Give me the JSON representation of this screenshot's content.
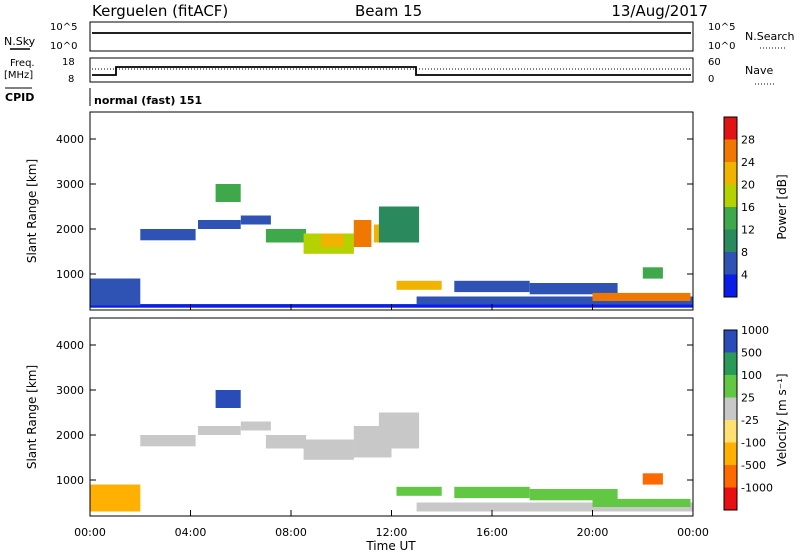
{
  "header": {
    "station": "Kerguelen (fitACF)",
    "beam": "Beam 15",
    "date": "13/Aug/2017"
  },
  "top_panels": {
    "nsky": {
      "left_label": "N.Sky",
      "right_label": "N.Search",
      "tick_top": "10^5",
      "tick_bottom": "10^0"
    },
    "freq": {
      "left_label_1": "Freq.",
      "left_label_2": "[MHz]",
      "left_tick_top": "18",
      "left_tick_bottom": "8",
      "right_label": "Nave",
      "right_tick_top": "60",
      "right_tick_bottom": "0"
    },
    "cpid": {
      "label": "CPID",
      "value": "normal (fast) 151"
    }
  },
  "colors": {
    "power_scale": [
      "#0a1ee6",
      "#2e53b4",
      "#2a8a5e",
      "#3ea84a",
      "#b4d200",
      "#f0b400",
      "#f07800",
      "#e01414"
    ],
    "velocity_scale": [
      "#e81010",
      "#ff6a00",
      "#ffb000",
      "#ffe070",
      "#c8c8c8",
      "#62c844",
      "#2a9a58",
      "#2a4cb8"
    ]
  },
  "chart_data": [
    {
      "type": "heatmap",
      "quantity": "power",
      "xlabel": "",
      "ylabel": "Slant Range [km]",
      "y_ticks": [
        "1000",
        "2000",
        "3000",
        "4000"
      ],
      "ylim": [
        200,
        4600
      ],
      "xlim_hours": [
        0,
        24
      ],
      "colorbar": {
        "label": "Power [dB]",
        "ticks": [
          "4",
          "8",
          "12",
          "16",
          "20",
          "24",
          "28"
        ],
        "range": [
          0,
          32
        ]
      },
      "patches": [
        {
          "t0": 0.0,
          "t1": 24.0,
          "r0": 250,
          "r1": 330,
          "level": 0
        },
        {
          "t0": 0.0,
          "t1": 2.0,
          "r0": 300,
          "r1": 900,
          "level": 1
        },
        {
          "t0": 2.0,
          "t1": 4.2,
          "r0": 1750,
          "r1": 2000,
          "level": 1
        },
        {
          "t0": 4.3,
          "t1": 6.0,
          "r0": 2000,
          "r1": 2200,
          "level": 1
        },
        {
          "t0": 5.0,
          "t1": 6.0,
          "r0": 2600,
          "r1": 3000,
          "level": 3
        },
        {
          "t0": 6.0,
          "t1": 7.2,
          "r0": 2100,
          "r1": 2300,
          "level": 1
        },
        {
          "t0": 7.0,
          "t1": 8.6,
          "r0": 1700,
          "r1": 2000,
          "level": 3
        },
        {
          "t0": 8.5,
          "t1": 10.5,
          "r0": 1450,
          "r1": 1900,
          "level": 4
        },
        {
          "t0": 9.2,
          "t1": 10.1,
          "r0": 1600,
          "r1": 1900,
          "level": 5
        },
        {
          "t0": 10.5,
          "t1": 11.2,
          "r0": 1600,
          "r1": 2200,
          "level": 6
        },
        {
          "t0": 11.3,
          "t1": 12.0,
          "r0": 1700,
          "r1": 2100,
          "level": 5
        },
        {
          "t0": 11.5,
          "t1": 13.1,
          "r0": 1700,
          "r1": 2500,
          "level": 2
        },
        {
          "t0": 12.2,
          "t1": 14.0,
          "r0": 650,
          "r1": 850,
          "level": 5
        },
        {
          "t0": 14.5,
          "t1": 17.5,
          "r0": 600,
          "r1": 850,
          "level": 1
        },
        {
          "t0": 17.5,
          "t1": 21.0,
          "r0": 550,
          "r1": 800,
          "level": 1
        },
        {
          "t0": 13.0,
          "t1": 24.0,
          "r0": 330,
          "r1": 500,
          "level": 1
        },
        {
          "t0": 20.0,
          "t1": 23.9,
          "r0": 400,
          "r1": 580,
          "level": 6
        },
        {
          "t0": 22.0,
          "t1": 22.8,
          "r0": 900,
          "r1": 1150,
          "level": 3
        }
      ]
    },
    {
      "type": "heatmap",
      "quantity": "velocity",
      "xlabel": "Time UT",
      "ylabel": "Slant Range [km]",
      "x_ticks": [
        "00:00",
        "04:00",
        "08:00",
        "12:00",
        "16:00",
        "20:00",
        "00:00"
      ],
      "y_ticks": [
        "1000",
        "2000",
        "3000",
        "4000"
      ],
      "ylim": [
        200,
        4600
      ],
      "xlim_hours": [
        0,
        24
      ],
      "colorbar": {
        "label": "Velocity [m s⁻¹]",
        "ticks": [
          "-1000",
          "-500",
          "-100",
          "-25",
          "25",
          "100",
          "500",
          "1000"
        ],
        "n_bins": 8
      },
      "patches": [
        {
          "t0": 0.0,
          "t1": 2.0,
          "r0": 300,
          "r1": 900,
          "level": 2
        },
        {
          "t0": 2.0,
          "t1": 4.2,
          "r0": 1750,
          "r1": 2000,
          "level": 4
        },
        {
          "t0": 4.3,
          "t1": 6.0,
          "r0": 2000,
          "r1": 2200,
          "level": 4
        },
        {
          "t0": 5.0,
          "t1": 6.0,
          "r0": 2600,
          "r1": 3000,
          "level": 7
        },
        {
          "t0": 6.0,
          "t1": 7.2,
          "r0": 2100,
          "r1": 2300,
          "level": 4
        },
        {
          "t0": 7.0,
          "t1": 8.6,
          "r0": 1700,
          "r1": 2000,
          "level": 4
        },
        {
          "t0": 8.5,
          "t1": 10.5,
          "r0": 1450,
          "r1": 1900,
          "level": 4
        },
        {
          "t0": 10.5,
          "t1": 12.0,
          "r0": 1500,
          "r1": 2200,
          "level": 4
        },
        {
          "t0": 11.5,
          "t1": 13.1,
          "r0": 1700,
          "r1": 2500,
          "level": 4
        },
        {
          "t0": 12.2,
          "t1": 14.0,
          "r0": 650,
          "r1": 850,
          "level": 5
        },
        {
          "t0": 14.5,
          "t1": 17.5,
          "r0": 600,
          "r1": 850,
          "level": 5
        },
        {
          "t0": 17.5,
          "t1": 21.0,
          "r0": 550,
          "r1": 800,
          "level": 5
        },
        {
          "t0": 13.0,
          "t1": 24.0,
          "r0": 300,
          "r1": 500,
          "level": 4
        },
        {
          "t0": 20.0,
          "t1": 23.9,
          "r0": 400,
          "r1": 580,
          "level": 5
        },
        {
          "t0": 22.0,
          "t1": 22.8,
          "r0": 900,
          "r1": 1150,
          "level": 1
        }
      ]
    }
  ]
}
